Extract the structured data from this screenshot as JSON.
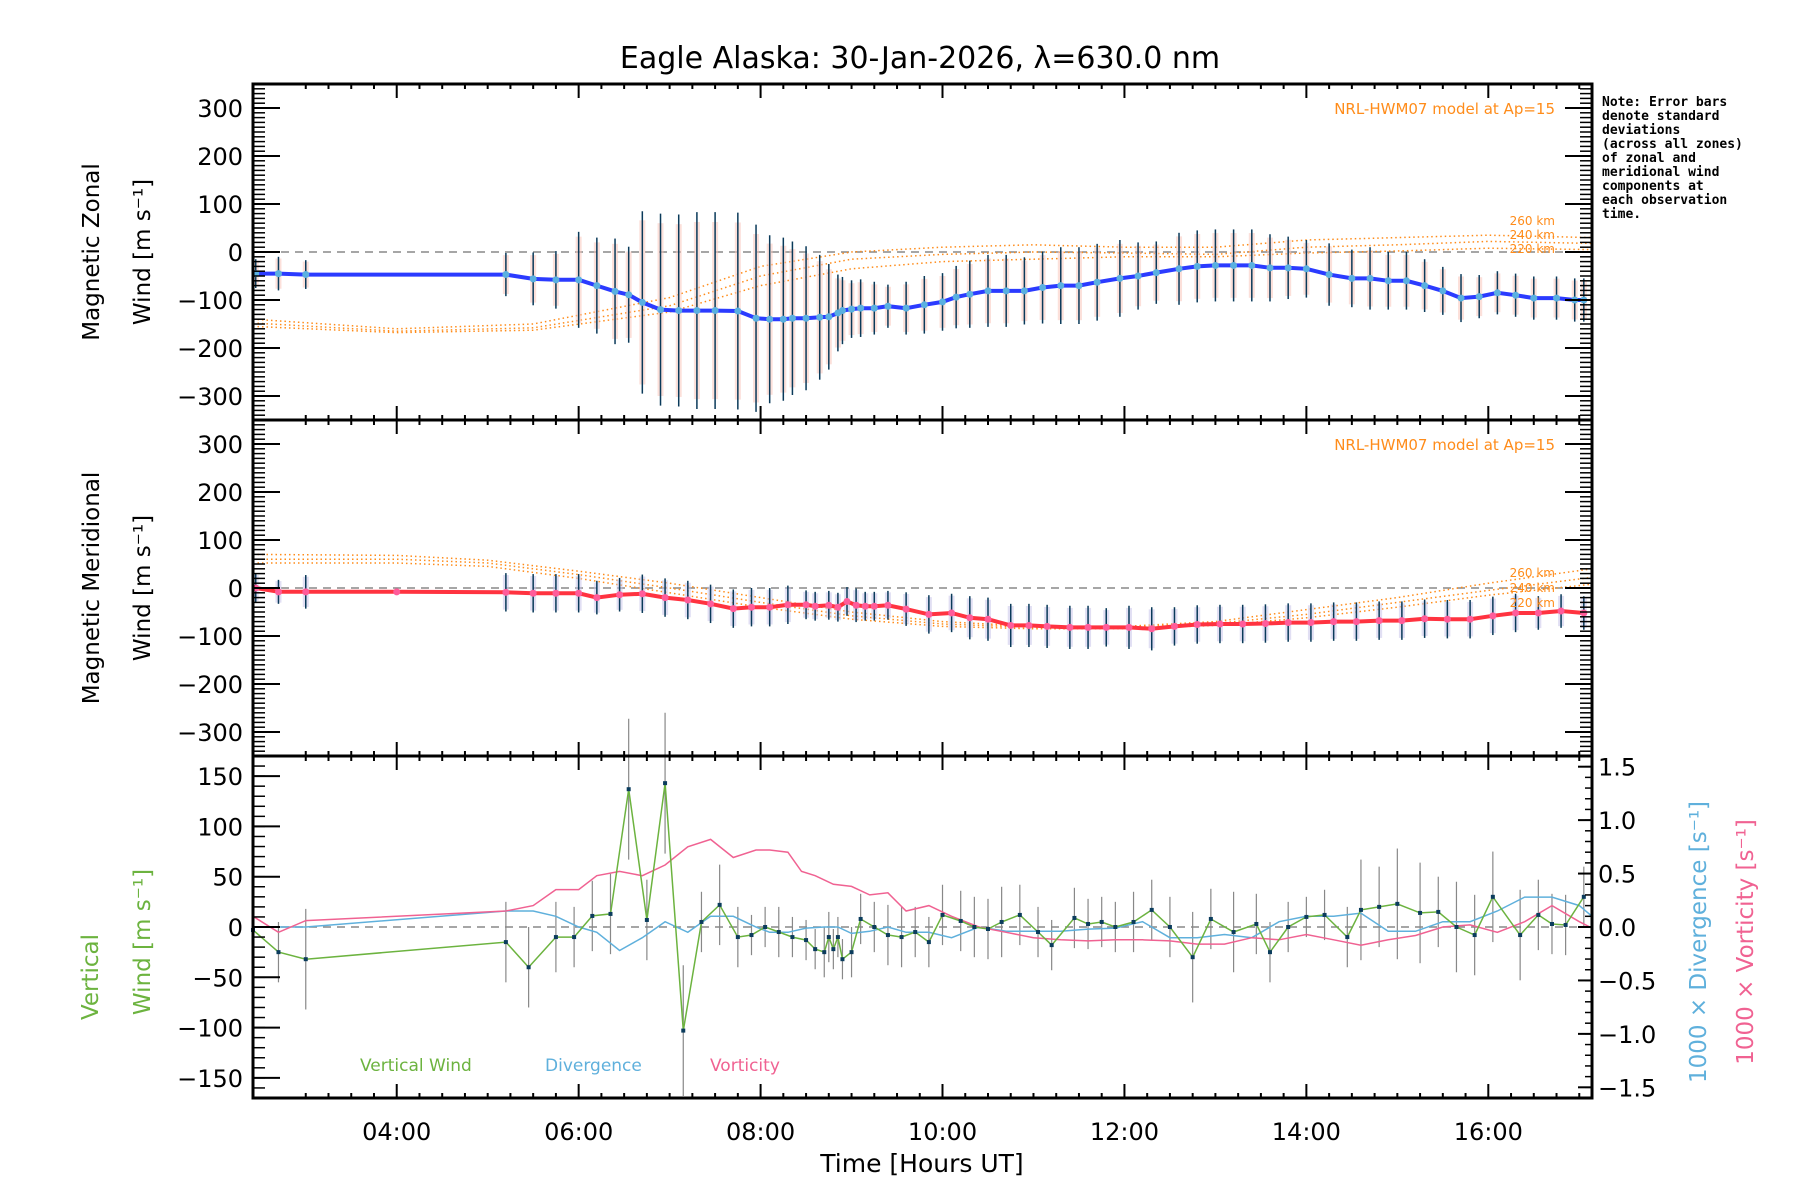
{
  "title": "Eagle Alaska: 30-Jan-2026, λ=630.0 nm",
  "note_lines": [
    "Note: Error bars",
    "denote standard",
    "deviations",
    "(across all zones)",
    "of zonal and",
    "meridional wind",
    "components at",
    "each observation",
    "time."
  ],
  "colors": {
    "zonal": "#2b3bff",
    "zonal_marker": "#5ab0e0",
    "meridional": "#ff3340",
    "meridional_marker": "#ff5c9a",
    "model": "#ff8c1a",
    "errbar": "#0a3a5a",
    "vertical": "#6cb33f",
    "divergence": "#5fb0dc",
    "vorticity": "#f06292",
    "zero": "#888888",
    "vert_err": "#888888",
    "vert_marker": "#0b3c5d"
  },
  "chart_data": [
    {
      "type": "line",
      "panel": "zonal",
      "ylabel_line1": "Magnetic Zonal",
      "ylabel_line2": "Wind [m s⁻¹]",
      "ylim": [
        -350,
        350
      ],
      "yticks": [
        -300,
        -200,
        -100,
        0,
        100,
        200,
        300
      ],
      "xlim": [
        2.42,
        17.14
      ],
      "model_label": "NRL-HWM07 model at Ap=15",
      "model_alt_labels": [
        "260 km",
        "240 km",
        "220 km"
      ],
      "x": [
        2.45,
        2.7,
        3.0,
        5.2,
        5.5,
        5.75,
        6.0,
        6.2,
        6.4,
        6.55,
        6.7,
        6.9,
        7.1,
        7.3,
        7.5,
        7.75,
        7.95,
        8.1,
        8.25,
        8.35,
        8.5,
        8.65,
        8.75,
        8.85,
        8.9,
        9.0,
        9.1,
        9.25,
        9.4,
        9.6,
        9.8,
        10.0,
        10.15,
        10.3,
        10.5,
        10.7,
        10.9,
        11.1,
        11.3,
        11.5,
        11.7,
        11.95,
        12.15,
        12.35,
        12.6,
        12.8,
        13.0,
        13.2,
        13.4,
        13.6,
        13.8,
        14.0,
        14.25,
        14.5,
        14.7,
        14.9,
        15.1,
        15.3,
        15.5,
        15.7,
        15.9,
        16.1,
        16.3,
        16.5,
        16.75,
        16.95,
        17.05
      ],
      "values": [
        -45,
        -45,
        -47,
        -47,
        -56,
        -58,
        -58,
        -70,
        -82,
        -89,
        -105,
        -120,
        -122,
        -122,
        -122,
        -123,
        -138,
        -140,
        -140,
        -138,
        -138,
        -136,
        -135,
        -127,
        -122,
        -119,
        -117,
        -117,
        -113,
        -117,
        -110,
        -104,
        -94,
        -88,
        -81,
        -81,
        -81,
        -74,
        -70,
        -70,
        -63,
        -55,
        -50,
        -43,
        -35,
        -30,
        -28,
        -28,
        -28,
        -33,
        -33,
        -35,
        -47,
        -55,
        -55,
        -60,
        -60,
        -70,
        -81,
        -96,
        -93,
        -85,
        -90,
        -96,
        -96,
        -100,
        -100
      ],
      "errors": [
        30,
        35,
        30,
        45,
        55,
        60,
        100,
        100,
        110,
        100,
        190,
        200,
        200,
        205,
        205,
        205,
        195,
        175,
        170,
        160,
        150,
        130,
        110,
        80,
        70,
        60,
        60,
        55,
        45,
        55,
        60,
        60,
        65,
        70,
        75,
        75,
        70,
        75,
        80,
        80,
        80,
        80,
        70,
        65,
        75,
        75,
        75,
        75,
        75,
        70,
        65,
        60,
        65,
        60,
        65,
        60,
        60,
        55,
        50,
        50,
        45,
        45,
        45,
        45,
        45,
        45,
        45
      ],
      "model_series": [
        {
          "name": "260 km",
          "x": [
            2.42,
            4.0,
            5.5,
            7.0,
            8.0,
            9.0,
            10.0,
            11.0,
            12.0,
            13.0,
            14.0,
            15.0,
            16.0,
            17.14
          ],
          "values": [
            -140,
            -160,
            -150,
            -95,
            -30,
            0,
            10,
            15,
            10,
            10,
            25,
            30,
            35,
            30
          ]
        },
        {
          "name": "240 km",
          "x": [
            2.42,
            4.0,
            5.5,
            7.0,
            8.0,
            9.0,
            10.0,
            11.0,
            12.0,
            13.0,
            14.0,
            15.0,
            16.0,
            17.14
          ],
          "values": [
            -148,
            -165,
            -158,
            -112,
            -50,
            -15,
            -5,
            0,
            -2,
            -5,
            10,
            15,
            22,
            18
          ]
        },
        {
          "name": "220 km",
          "x": [
            2.42,
            4.0,
            5.5,
            7.0,
            8.0,
            9.0,
            10.0,
            11.0,
            12.0,
            13.0,
            14.0,
            15.0,
            16.0,
            17.14
          ],
          "values": [
            -155,
            -168,
            -163,
            -125,
            -70,
            -35,
            -20,
            -15,
            -10,
            -10,
            -2,
            2,
            8,
            5
          ]
        }
      ]
    },
    {
      "type": "line",
      "panel": "meridional",
      "ylabel_line1": "Magnetic Meridional",
      "ylabel_line2": "Wind [m s⁻¹]",
      "ylim": [
        -350,
        350
      ],
      "yticks": [
        -300,
        -200,
        -100,
        0,
        100,
        200,
        300
      ],
      "xlim": [
        2.42,
        17.14
      ],
      "model_label": "NRL-HWM07 model at Ap=15",
      "model_alt_labels": [
        "260 km",
        "240 km",
        "220 km"
      ],
      "x": [
        2.45,
        2.7,
        3.0,
        4.0,
        5.2,
        5.5,
        5.75,
        6.0,
        6.2,
        6.45,
        6.7,
        6.95,
        7.2,
        7.45,
        7.7,
        7.9,
        8.1,
        8.3,
        8.5,
        8.6,
        8.75,
        8.85,
        8.95,
        9.05,
        9.15,
        9.25,
        9.4,
        9.6,
        9.85,
        10.1,
        10.3,
        10.5,
        10.75,
        10.95,
        11.15,
        11.4,
        11.6,
        11.8,
        12.05,
        12.3,
        12.55,
        12.8,
        13.05,
        13.3,
        13.55,
        13.8,
        14.05,
        14.3,
        14.55,
        14.8,
        15.05,
        15.3,
        15.55,
        15.8,
        16.05,
        16.3,
        16.55,
        16.8,
        17.05
      ],
      "values": [
        0,
        -8,
        -8,
        -8,
        -9,
        -11,
        -11,
        -11,
        -20,
        -14,
        -12,
        -20,
        -25,
        -33,
        -43,
        -40,
        -40,
        -35,
        -35,
        -38,
        -36,
        -40,
        -28,
        -36,
        -38,
        -38,
        -36,
        -44,
        -55,
        -52,
        -62,
        -65,
        -78,
        -78,
        -80,
        -82,
        -82,
        -82,
        -82,
        -85,
        -80,
        -76,
        -75,
        -75,
        -74,
        -72,
        -72,
        -70,
        -70,
        -68,
        -68,
        -64,
        -65,
        -65,
        -58,
        -52,
        -52,
        -48,
        -52
      ],
      "errors": [
        30,
        25,
        35,
        0,
        40,
        40,
        40,
        40,
        35,
        35,
        40,
        40,
        40,
        40,
        40,
        40,
        40,
        40,
        30,
        30,
        30,
        30,
        30,
        35,
        30,
        30,
        30,
        35,
        40,
        40,
        45,
        45,
        45,
        45,
        45,
        45,
        45,
        40,
        45,
        45,
        40,
        40,
        40,
        40,
        40,
        40,
        40,
        40,
        40,
        40,
        40,
        40,
        40,
        40,
        40,
        40,
        35,
        35,
        35
      ],
      "model_series": [
        {
          "name": "260 km",
          "x": [
            2.42,
            4.0,
            5.0,
            6.0,
            7.0,
            8.0,
            9.0,
            10.0,
            11.0,
            12.0,
            13.0,
            14.0,
            15.0,
            16.0,
            17.14
          ],
          "values": [
            70,
            68,
            58,
            35,
            10,
            -20,
            -50,
            -70,
            -80,
            -80,
            -70,
            -45,
            -20,
            10,
            40
          ]
        },
        {
          "name": "240 km",
          "x": [
            2.42,
            4.0,
            5.0,
            6.0,
            7.0,
            8.0,
            9.0,
            10.0,
            11.0,
            12.0,
            13.0,
            14.0,
            15.0,
            16.0,
            17.14
          ],
          "values": [
            60,
            60,
            52,
            28,
            0,
            -30,
            -58,
            -75,
            -82,
            -82,
            -74,
            -55,
            -30,
            -5,
            22
          ]
        },
        {
          "name": "220 km",
          "x": [
            2.42,
            4.0,
            5.0,
            6.0,
            7.0,
            8.0,
            9.0,
            10.0,
            11.0,
            12.0,
            13.0,
            14.0,
            15.0,
            16.0,
            17.14
          ],
          "values": [
            52,
            52,
            45,
            20,
            -10,
            -40,
            -65,
            -80,
            -85,
            -85,
            -78,
            -62,
            -40,
            -15,
            8
          ]
        }
      ]
    },
    {
      "type": "line",
      "panel": "vertical",
      "ylabel_line1": "Vertical",
      "ylabel_line2": "Wind [m s⁻¹]",
      "y2label_div": "1000 × Divergence [s⁻¹]",
      "y2label_vort": "1000 × Vorticity [s⁻¹]",
      "ylim": [
        -170,
        170
      ],
      "yticks": [
        -150,
        -100,
        -50,
        0,
        50,
        100,
        150
      ],
      "y2lim": [
        -1.6,
        1.6
      ],
      "y2ticks": [
        "-1.5",
        "-1.0",
        "-0.5",
        "0.0",
        "0.5",
        "1.0",
        "1.5"
      ],
      "xlim": [
        2.42,
        17.14
      ],
      "xticks": [
        "04:00",
        "06:00",
        "08:00",
        "10:00",
        "12:00",
        "14:00",
        "16:00"
      ],
      "xtick_hours": [
        4,
        6,
        8,
        10,
        12,
        14,
        16
      ],
      "xlabel": "Time [Hours UT]",
      "legend": [
        "Vertical Wind",
        "Divergence",
        "Vorticity"
      ],
      "vertical_wind": {
        "x": [
          2.42,
          2.7,
          3.0,
          5.2,
          5.45,
          5.75,
          5.95,
          6.15,
          6.35,
          6.55,
          6.75,
          6.95,
          7.15,
          7.35,
          7.55,
          7.75,
          7.9,
          8.05,
          8.2,
          8.35,
          8.5,
          8.6,
          8.7,
          8.75,
          8.8,
          8.85,
          8.9,
          9.0,
          9.1,
          9.25,
          9.4,
          9.55,
          9.7,
          9.85,
          10.0,
          10.2,
          10.35,
          10.5,
          10.65,
          10.85,
          11.05,
          11.2,
          11.45,
          11.6,
          11.75,
          11.9,
          12.1,
          12.3,
          12.5,
          12.75,
          12.95,
          13.2,
          13.45,
          13.6,
          13.8,
          14.0,
          14.2,
          14.45,
          14.6,
          14.8,
          15.0,
          15.25,
          15.45,
          15.65,
          15.85,
          16.05,
          16.35,
          16.55,
          16.7,
          16.85,
          17.05
        ],
        "values": [
          -3,
          -25,
          -32,
          -15,
          -40,
          -10,
          -10,
          11,
          13,
          137,
          7,
          143,
          -103,
          5,
          22,
          -10,
          -8,
          0,
          -5,
          -10,
          -13,
          -22,
          -25,
          -10,
          -22,
          -10,
          -32,
          -25,
          8,
          0,
          -8,
          -10,
          -5,
          -15,
          12,
          6,
          0,
          -2,
          5,
          12,
          -5,
          -18,
          9,
          3,
          5,
          0,
          5,
          17,
          0,
          -30,
          8,
          -5,
          3,
          -25,
          0,
          10,
          12,
          -10,
          17,
          20,
          23,
          14,
          15,
          0,
          -8,
          30,
          -8,
          12,
          3,
          2,
          30
        ],
        "errors": [
          20,
          30,
          50,
          40,
          40,
          35,
          30,
          35,
          40,
          70,
          40,
          70,
          65,
          30,
          40,
          30,
          20,
          20,
          25,
          20,
          20,
          20,
          25,
          25,
          20,
          20,
          20,
          25,
          25,
          25,
          30,
          30,
          25,
          25,
          30,
          30,
          30,
          30,
          35,
          30,
          25,
          25,
          30,
          25,
          25,
          25,
          30,
          30,
          30,
          45,
          30,
          40,
          30,
          30,
          25,
          20,
          25,
          30,
          50,
          40,
          55,
          50,
          35,
          45,
          40,
          45,
          45,
          35,
          30,
          30,
          30
        ]
      },
      "divergence": {
        "x": [
          2.42,
          2.7,
          3.0,
          5.2,
          5.5,
          5.75,
          6.0,
          6.2,
          6.45,
          6.7,
          6.95,
          7.2,
          7.45,
          7.7,
          7.95,
          8.1,
          8.3,
          8.5,
          8.7,
          8.85,
          9.0,
          9.2,
          9.4,
          9.6,
          9.85,
          10.1,
          10.4,
          10.7,
          11.0,
          11.3,
          11.6,
          11.9,
          12.2,
          12.5,
          12.8,
          13.1,
          13.4,
          13.7,
          14.0,
          14.3,
          14.6,
          14.9,
          15.2,
          15.5,
          15.8,
          16.1,
          16.4,
          16.7,
          17.0,
          17.14
        ],
        "values": [
          0.0,
          0.0,
          0.0,
          0.15,
          0.15,
          0.1,
          0.0,
          -0.05,
          -0.22,
          -0.1,
          0.05,
          -0.05,
          0.1,
          0.1,
          0.0,
          -0.05,
          -0.05,
          -0.01,
          0.0,
          0.0,
          -0.06,
          -0.04,
          0.0,
          -0.05,
          -0.05,
          -0.1,
          0.0,
          -0.04,
          -0.04,
          -0.04,
          -0.02,
          -0.01,
          0.05,
          -0.1,
          -0.1,
          -0.07,
          -0.1,
          0.05,
          0.1,
          0.1,
          0.13,
          -0.04,
          -0.04,
          0.05,
          0.05,
          0.15,
          0.28,
          0.28,
          0.2,
          0.1
        ]
      },
      "vorticity": {
        "x": [
          2.42,
          2.7,
          3.0,
          5.2,
          5.5,
          5.75,
          6.0,
          6.2,
          6.45,
          6.7,
          6.95,
          7.2,
          7.45,
          7.7,
          7.95,
          8.1,
          8.3,
          8.45,
          8.6,
          8.8,
          9.0,
          9.2,
          9.4,
          9.6,
          9.85,
          10.1,
          10.4,
          10.7,
          11.0,
          11.3,
          11.6,
          11.9,
          12.2,
          12.5,
          12.8,
          13.1,
          13.4,
          13.7,
          14.0,
          14.3,
          14.6,
          14.9,
          15.2,
          15.5,
          15.8,
          16.1,
          16.4,
          16.7,
          17.0,
          17.14
        ],
        "values": [
          0.1,
          -0.05,
          0.06,
          0.15,
          0.2,
          0.35,
          0.35,
          0.48,
          0.52,
          0.48,
          0.58,
          0.75,
          0.82,
          0.65,
          0.72,
          0.72,
          0.7,
          0.52,
          0.48,
          0.4,
          0.38,
          0.3,
          0.32,
          0.15,
          0.2,
          0.1,
          0.0,
          -0.05,
          -0.1,
          -0.12,
          -0.13,
          -0.12,
          -0.12,
          -0.13,
          -0.16,
          -0.16,
          -0.1,
          -0.12,
          -0.07,
          -0.12,
          -0.17,
          -0.12,
          -0.08,
          0.0,
          0.02,
          -0.05,
          0.05,
          0.2,
          0.05,
          -0.01
        ]
      }
    }
  ]
}
